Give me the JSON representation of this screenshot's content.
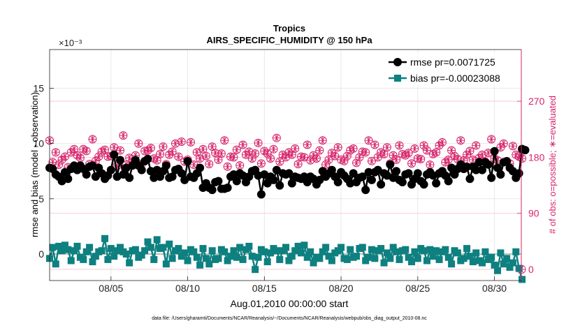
{
  "chart_data": {
    "type": "scatter",
    "title": "Tropics",
    "subtitle": "AIRS_SPECIFIC_HUMIDITY @ 150 hPa",
    "xlabel": "Aug.01,2010 00:00:00 start",
    "ylabel": "rmse and bias (model - observation)",
    "y2label": "# of obs: o=possible; ∗=evaluated",
    "yexponent": "×10⁻³",
    "footer": "data file: /Users/gharamti/Documents/NCAR/Reanalysis/~/Documents/NCAR/Reanalysis/webpub/obs_diag_output_2010-08.nc",
    "xlim": [
      1.0,
      31.75
    ],
    "ylim": [
      -2.4,
      18.5
    ],
    "y2lim": [
      -18,
      353
    ],
    "x_ticks": [
      5,
      10,
      15,
      20,
      25,
      30
    ],
    "x_tick_labels": [
      "08/05",
      "08/10",
      "08/15",
      "08/20",
      "08/25",
      "08/30"
    ],
    "y_ticks": [
      0,
      5,
      10,
      15
    ],
    "y_tick_labels": [
      "0",
      "5",
      "10",
      "15"
    ],
    "y2_ticks": [
      0,
      90,
      180,
      270
    ],
    "y2_tick_labels": [
      "0",
      "90",
      "180",
      "270"
    ],
    "grid": true,
    "colors": {
      "rmse": "#000000",
      "bias": "#0e8080",
      "obs": "#d6246b",
      "zero_line": "#aaaaaa",
      "grid": "#e8e8e8",
      "y2_grid": "#f5c2d4"
    },
    "series": [
      {
        "name": "rmse pr=0.0071725",
        "marker": "circle",
        "values": [
          7.8,
          7.7,
          7.2,
          7.0,
          6.6,
          7.4,
          6.8,
          7.7,
          8.0,
          7.6,
          8.0,
          7.7,
          7.2,
          7.9,
          8.0,
          7.0,
          7.8,
          7.3,
          6.8,
          7.1,
          7.6,
          9.0,
          7.0,
          8.5,
          7.2,
          7.8,
          6.9,
          8.0,
          8.5,
          8.0,
          7.6,
          8.4,
          8.6,
          7.5,
          6.9,
          7.6,
          7.0,
          7.5,
          8.0,
          6.9,
          7.0,
          7.6,
          7.7,
          7.3,
          6.7,
          8.4,
          7.0,
          6.9,
          7.3,
          7.8,
          6.0,
          6.4,
          6.0,
          5.8,
          6.5,
          6.6,
          5.9,
          5.9,
          6.0,
          7.0,
          7.2,
          6.6,
          7.3,
          7.1,
          6.5,
          7.0,
          7.5,
          7.6,
          7.1,
          5.4,
          7.2,
          6.4,
          7.0,
          6.7,
          7.6,
          6.2,
          7.3,
          7.2,
          7.3,
          6.4,
          7.0,
          6.9,
          6.8,
          7.0,
          6.5,
          7.0,
          6.8,
          6.3,
          6.7,
          7.5,
          7.0,
          7.3,
          7.6,
          7.0,
          6.5,
          7.4,
          7.1,
          6.8,
          6.4,
          7.3,
          6.5,
          6.9,
          7.0,
          5.8,
          7.4,
          6.7,
          7.4,
          7.6,
          6.3,
          7.3,
          7.1,
          8.1,
          6.9,
          7.5,
          6.7,
          6.5,
          7.2,
          7.3,
          6.3,
          6.8,
          7.3,
          6.6,
          6.3,
          7.2,
          7.4,
          7.1,
          6.4,
          7.3,
          7.5,
          7.1,
          6.6,
          7.8,
          7.2,
          7.7,
          8.1,
          7.7,
          7.9,
          6.8,
          7.9,
          7.6,
          8.3,
          7.6,
          8.3,
          8.1,
          6.9,
          9.3,
          7.8,
          7.2,
          8.3,
          8.4,
          7.8,
          7.5,
          6.9,
          7.3,
          9.5,
          9.4
        ],
        "x_start": 1.0,
        "x_step": 0.2
      },
      {
        "name": "bias pr=-0.00023088",
        "marker": "square",
        "values": [
          -0.4,
          0.6,
          -0.9,
          0.7,
          0.3,
          0.8,
          0.4,
          -0.6,
          0.3,
          0.7,
          -0.3,
          -0.5,
          0.2,
          0.6,
          -0.7,
          -0.2,
          0.2,
          0.3,
          1.4,
          -0.5,
          0.5,
          -0.2,
          0.3,
          0.6,
          0.2,
          0.0,
          -0.8,
          0.3,
          0.4,
          -0.3,
          -0.1,
          0.3,
          1.1,
          0.6,
          -0.5,
          1.3,
          0.5,
          0.6,
          -0.9,
          0.9,
          -0.4,
          0.3,
          0.5,
          -0.2,
          0.1,
          -0.6,
          0.4,
          0.2,
          -0.3,
          -1.0,
          0.5,
          -0.4,
          -0.9,
          0.3,
          -0.5,
          -0.4,
          0.4,
          0.2,
          -0.6,
          -0.2,
          0.3,
          -0.3,
          0.6,
          -0.5,
          0.4,
          0.7,
          -0.2,
          -1.4,
          -0.3,
          0.4,
          0.2,
          -0.7,
          0.1,
          0.5,
          0.3,
          -0.5,
          0.3,
          0.6,
          -0.6,
          -0.2,
          0.3,
          0.7,
          0.1,
          0.8,
          -0.3,
          0.2,
          -0.8,
          -0.3,
          -0.4,
          0.2,
          0.6,
          -0.2,
          -0.6,
          0.1,
          0.3,
          0.6,
          -0.4,
          -0.5,
          0.4,
          -0.3,
          -0.2,
          0.5,
          0.6,
          -0.6,
          -0.3,
          0.4,
          -0.4,
          0.3,
          0.5,
          -0.8,
          0.1,
          -0.4,
          0.6,
          0.2,
          -0.5,
          0.3,
          0.4,
          -0.3,
          -0.7,
          0.2,
          -0.4,
          0.5,
          0.3,
          -0.6,
          0.4,
          -0.2,
          0.3,
          -0.5,
          0.2,
          0.4,
          -0.3,
          -0.9,
          0.3,
          0.1,
          -0.6,
          -0.4,
          0.5,
          -0.2,
          -0.7,
          0.1,
          -0.6,
          -0.8,
          0.2,
          -0.5,
          -0.3,
          -1.0,
          -1.5,
          0.1,
          -0.9,
          -0.4,
          -1.2,
          -0.8,
          0.2,
          -1.3,
          -2.3
        ],
        "x_start": 1.0,
        "x_step": 0.2
      }
    ],
    "obs_counts": {
      "name": "# of obs",
      "possible_marker": "circle",
      "evaluated_marker": "asterisk",
      "possible": [
        207,
        172,
        188,
        168,
        176,
        181,
        164,
        188,
        193,
        183,
        179,
        193,
        190,
        169,
        209,
        174,
        181,
        189,
        192,
        181,
        182,
        196,
        166,
        191,
        215,
        168,
        179,
        172,
        183,
        202,
        169,
        190,
        191,
        195,
        178,
        175,
        185,
        197,
        169,
        184,
        189,
        202,
        181,
        205,
        173,
        176,
        204,
        168,
        188,
        178,
        193,
        182,
        169,
        197,
        187,
        176,
        186,
        207,
        165,
        181,
        180,
        192,
        167,
        200,
        184,
        189,
        178,
        186,
        203,
        170,
        190,
        186,
        178,
        193,
        211,
        173,
        184,
        180,
        188,
        184,
        194,
        169,
        181,
        180,
        200,
        175,
        183,
        178,
        191,
        207,
        168,
        176,
        187,
        182,
        196,
        176,
        174,
        182,
        191,
        194,
        171,
        180,
        189,
        188,
        207,
        174,
        200,
        180,
        188,
        185,
        196,
        170,
        183,
        176,
        199,
        185,
        183,
        187,
        170,
        194,
        178,
        177,
        199,
        191,
        168,
        185,
        188,
        199,
        204,
        172,
        176,
        191,
        182,
        177,
        207,
        175,
        184,
        190,
        176,
        199,
        179,
        184,
        173,
        187,
        209,
        178,
        175,
        196,
        202,
        173,
        170,
        198,
        184,
        181,
        178
      ],
      "evaluated": [
        207,
        172,
        188,
        168,
        176,
        181,
        164,
        188,
        193,
        183,
        179,
        193,
        190,
        169,
        209,
        174,
        181,
        189,
        192,
        181,
        182,
        196,
        166,
        191,
        215,
        168,
        179,
        172,
        183,
        202,
        169,
        190,
        191,
        195,
        178,
        175,
        185,
        197,
        169,
        184,
        189,
        202,
        181,
        205,
        173,
        176,
        204,
        168,
        188,
        178,
        193,
        182,
        169,
        197,
        187,
        176,
        186,
        207,
        165,
        181,
        180,
        192,
        167,
        200,
        184,
        189,
        178,
        186,
        203,
        170,
        190,
        186,
        178,
        193,
        211,
        173,
        184,
        180,
        188,
        184,
        194,
        169,
        181,
        180,
        200,
        175,
        183,
        178,
        191,
        207,
        168,
        176,
        187,
        182,
        196,
        176,
        174,
        182,
        191,
        194,
        171,
        180,
        189,
        188,
        207,
        174,
        200,
        180,
        188,
        185,
        196,
        170,
        183,
        176,
        199,
        185,
        183,
        187,
        170,
        194,
        178,
        177,
        199,
        191,
        168,
        185,
        188,
        199,
        204,
        172,
        176,
        191,
        182,
        177,
        207,
        175,
        184,
        190,
        176,
        199,
        179,
        184,
        173,
        187,
        209,
        178,
        175,
        196,
        202,
        173,
        170,
        198,
        184,
        181,
        178
      ]
    }
  }
}
